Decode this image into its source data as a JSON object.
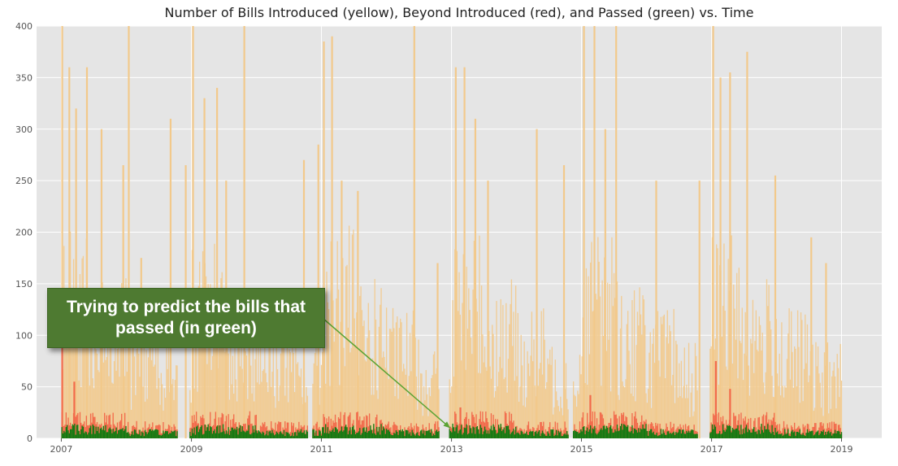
{
  "chart_data": {
    "type": "bar",
    "title": "Number of Bills Introduced (yellow), Beyond Introduced (red), and Passed (green) vs. Time",
    "xlabel": "",
    "ylabel": "",
    "xlim": [
      "2006-08-15",
      "2019-08-15"
    ],
    "ylim": [
      0,
      400
    ],
    "x_ticks": [
      "2007",
      "2009",
      "2011",
      "2013",
      "2015",
      "2017",
      "2019"
    ],
    "y_ticks": [
      "0",
      "50",
      "100",
      "150",
      "200",
      "250",
      "300",
      "350",
      "400"
    ],
    "grid": true,
    "legend": "none",
    "colors": {
      "introduced": "#f2c98b",
      "beyond_introduced": "#f26a4b",
      "passed": "#117a11",
      "background": "#e5e5e5",
      "grid": "#ffffff"
    },
    "annotation": {
      "text": "Trying to predict the bills that passed (in green)",
      "points_to": "2013"
    },
    "spikes": [
      {
        "x": "2007-01-01",
        "y": 400
      },
      {
        "x": "2007-02-10",
        "y": 360
      },
      {
        "x": "2007-03-20",
        "y": 320
      },
      {
        "x": "2007-05-20",
        "y": 360
      },
      {
        "x": "2007-08-10",
        "y": 300
      },
      {
        "x": "2007-12-10",
        "y": 265
      },
      {
        "x": "2008-01-10",
        "y": 400
      },
      {
        "x": "2008-03-20",
        "y": 175
      },
      {
        "x": "2008-09-01",
        "y": 310
      },
      {
        "x": "2008-11-25",
        "y": 265
      },
      {
        "x": "2009-01-05",
        "y": 400
      },
      {
        "x": "2009-03-10",
        "y": 330
      },
      {
        "x": "2009-05-20",
        "y": 340
      },
      {
        "x": "2009-07-10",
        "y": 250
      },
      {
        "x": "2009-10-20",
        "y": 400
      },
      {
        "x": "2010-09-20",
        "y": 270
      },
      {
        "x": "2010-12-10",
        "y": 285
      },
      {
        "x": "2011-01-10",
        "y": 385
      },
      {
        "x": "2011-02-25",
        "y": 390
      },
      {
        "x": "2011-04-20",
        "y": 250
      },
      {
        "x": "2011-07-20",
        "y": 240
      },
      {
        "x": "2012-06-01",
        "y": 400
      },
      {
        "x": "2012-10-10",
        "y": 170
      },
      {
        "x": "2013-01-20",
        "y": 360
      },
      {
        "x": "2013-03-10",
        "y": 360
      },
      {
        "x": "2013-05-10",
        "y": 310
      },
      {
        "x": "2013-07-20",
        "y": 250
      },
      {
        "x": "2014-04-20",
        "y": 300
      },
      {
        "x": "2014-09-20",
        "y": 265
      },
      {
        "x": "2015-01-10",
        "y": 400
      },
      {
        "x": "2015-03-10",
        "y": 400
      },
      {
        "x": "2015-05-10",
        "y": 300
      },
      {
        "x": "2015-07-10",
        "y": 400
      },
      {
        "x": "2016-02-20",
        "y": 250
      },
      {
        "x": "2016-10-20",
        "y": 250
      },
      {
        "x": "2017-01-05",
        "y": 400
      },
      {
        "x": "2017-02-15",
        "y": 350
      },
      {
        "x": "2017-04-10",
        "y": 355
      },
      {
        "x": "2017-07-15",
        "y": 375
      },
      {
        "x": "2017-12-20",
        "y": 255
      },
      {
        "x": "2018-07-10",
        "y": 195
      },
      {
        "x": "2018-10-01",
        "y": 170
      }
    ],
    "red_spikes": [
      {
        "x": "2007-01-01",
        "y": 100
      },
      {
        "x": "2007-03-10",
        "y": 55
      },
      {
        "x": "2013-02-15",
        "y": 30
      },
      {
        "x": "2015-02-15",
        "y": 42
      },
      {
        "x": "2017-01-20",
        "y": 75
      },
      {
        "x": "2017-04-10",
        "y": 48
      }
    ]
  }
}
